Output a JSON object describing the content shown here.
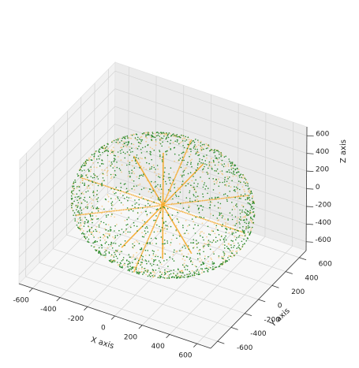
{
  "chart_data": {
    "type": "scatter3d",
    "xlabel": "X axis",
    "ylabel": "Y axis",
    "zlabel": "Z axis",
    "xlim": [
      -700,
      700
    ],
    "ylim": [
      -700,
      700
    ],
    "zlim": [
      -700,
      700
    ],
    "xticks": [
      -600,
      -400,
      -200,
      0,
      200,
      400,
      600
    ],
    "yticks": [
      -600,
      -400,
      -200,
      0,
      200,
      400,
      600
    ],
    "zticks": [
      -600,
      -400,
      -200,
      0,
      200,
      400,
      600
    ],
    "grid": true,
    "series": [
      {
        "marker": "point",
        "color": "#2e8b2e",
        "shape": "sphere-surface",
        "center": [
          0,
          0,
          0
        ],
        "radius": 600,
        "approx_points": 1500
      },
      {
        "marker": "point",
        "color": "#f5a623",
        "shape": "sphere-surface-and-radial-lines",
        "center": [
          0,
          0,
          0
        ],
        "radius": 600,
        "approx_points": 700
      }
    ]
  }
}
